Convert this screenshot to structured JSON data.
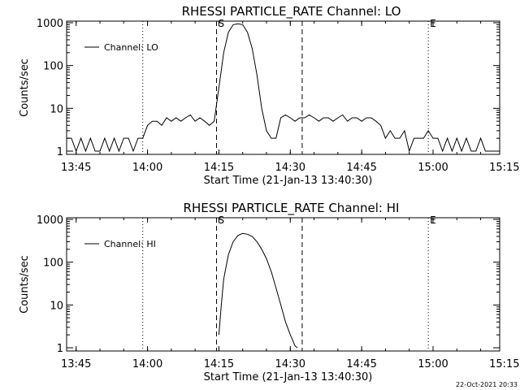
{
  "footer": {
    "timestamp": "22-Oct-2021 20:33"
  },
  "chart_data": [
    {
      "type": "line",
      "title": "RHESSI PARTICLE_RATE Channel: LO",
      "xlabel": "Start Time (21-Jan-13 13:40:30)",
      "ylabel": "Counts/sec",
      "y_scale": "log",
      "ylim": [
        1,
        1000
      ],
      "xlim_minutes": [
        13.0,
        104.0
      ],
      "x_ticks": [
        {
          "label": "13:45",
          "minutes": 15
        },
        {
          "label": "14:00",
          "minutes": 30
        },
        {
          "label": "14:15",
          "minutes": 45
        },
        {
          "label": "14:30",
          "minutes": 60
        },
        {
          "label": "14:45",
          "minutes": 75
        },
        {
          "label": "15:00",
          "minutes": 90
        },
        {
          "label": "15:15",
          "minutes": 105
        }
      ],
      "y_ticks": [
        {
          "label": "1",
          "value": 1
        },
        {
          "label": "10",
          "value": 10
        },
        {
          "label": "100",
          "value": 100
        },
        {
          "label": "1000",
          "value": 1000
        }
      ],
      "legend": {
        "label": "Channel: LO",
        "position": "top-left"
      },
      "markers": {
        "start": "S",
        "end": "E"
      },
      "dashed_lines_minutes": [
        44.5,
        62.5
      ],
      "dotted_lines_minutes": [
        29.0,
        89.0,
        105.0
      ],
      "start_marker_minutes": 44.5,
      "end_marker_minutes": 89.0,
      "series": [
        {
          "name": "Channel: LO",
          "x": [
            13.0,
            14.0,
            15.0,
            16.0,
            17.0,
            18.0,
            19.0,
            20.0,
            21.0,
            22.0,
            23.0,
            24.0,
            25.0,
            26.0,
            27.0,
            28.0,
            29.0,
            30.0,
            31.0,
            32.0,
            33.0,
            34.0,
            35.0,
            36.0,
            37.0,
            38.0,
            39.0,
            40.0,
            41.0,
            42.0,
            43.0,
            44.0,
            45.0,
            46.0,
            47.0,
            48.0,
            49.0,
            50.0,
            51.0,
            52.0,
            53.0,
            54.0,
            55.0,
            56.0,
            57.0,
            58.0,
            59.0,
            60.0,
            61.0,
            62.0,
            63.0,
            64.0,
            65.0,
            66.0,
            67.0,
            68.0,
            69.0,
            70.0,
            71.0,
            72.0,
            73.0,
            74.0,
            75.0,
            76.0,
            77.0,
            78.0,
            79.0,
            80.0,
            81.0,
            82.0,
            83.0,
            84.0,
            85.0,
            86.0,
            87.0,
            88.0,
            89.0,
            90.0,
            91.0,
            92.0,
            93.0,
            94.0,
            95.0,
            96.0,
            97.0,
            98.0,
            99.0,
            100.0,
            101.0,
            102.0,
            103.0,
            104.0
          ],
          "y": [
            2,
            2,
            1,
            2,
            1,
            2,
            1,
            1,
            2,
            1,
            2,
            1,
            2,
            2,
            1,
            2,
            2,
            4,
            5,
            5,
            4,
            6,
            5,
            6,
            5,
            6,
            7,
            5,
            6,
            5,
            4,
            5,
            30,
            200,
            600,
            900,
            950,
            900,
            600,
            250,
            60,
            10,
            3,
            2,
            2,
            6,
            7,
            6,
            5,
            6,
            6,
            7,
            6,
            5,
            6,
            6,
            5,
            6,
            7,
            5,
            6,
            6,
            5,
            6,
            6,
            5,
            4,
            2,
            3,
            2,
            2,
            3,
            1,
            2,
            2,
            2,
            3,
            2,
            2,
            1,
            2,
            1,
            2,
            1,
            2,
            1,
            1,
            2,
            1,
            1,
            1,
            1
          ]
        }
      ]
    },
    {
      "type": "line",
      "title": "RHESSI PARTICLE_RATE Channel: HI",
      "xlabel": "Start Time (21-Jan-13 13:40:30)",
      "ylabel": "Counts/sec",
      "y_scale": "log",
      "ylim": [
        1,
        1000
      ],
      "xlim_minutes": [
        13.0,
        104.0
      ],
      "x_ticks": [
        {
          "label": "13:45",
          "minutes": 15
        },
        {
          "label": "14:00",
          "minutes": 30
        },
        {
          "label": "14:15",
          "minutes": 45
        },
        {
          "label": "14:30",
          "minutes": 60
        },
        {
          "label": "14:45",
          "minutes": 75
        },
        {
          "label": "15:00",
          "minutes": 90
        },
        {
          "label": "15:15",
          "minutes": 105
        }
      ],
      "y_ticks": [
        {
          "label": "1",
          "value": 1
        },
        {
          "label": "10",
          "value": 10
        },
        {
          "label": "100",
          "value": 100
        },
        {
          "label": "1000",
          "value": 1000
        }
      ],
      "legend": {
        "label": "Channel: HI",
        "position": "top-left"
      },
      "markers": {
        "start": "S",
        "end": "E"
      },
      "dashed_lines_minutes": [
        44.5,
        62.5
      ],
      "dotted_lines_minutes": [
        29.0,
        89.0,
        105.0
      ],
      "start_marker_minutes": 44.5,
      "end_marker_minutes": 89.0,
      "series": [
        {
          "name": "Channel: HI",
          "x": [
            45.0,
            45.5,
            46.0,
            47.0,
            48.0,
            49.0,
            50.0,
            51.0,
            52.0,
            53.0,
            54.0,
            55.0,
            56.0,
            57.0,
            58.0,
            59.0,
            60.0,
            60.5,
            61.0,
            61.5
          ],
          "y": [
            2,
            10,
            40,
            150,
            300,
            420,
            470,
            450,
            400,
            300,
            200,
            120,
            60,
            25,
            10,
            4,
            2,
            1.5,
            1.1,
            1
          ]
        }
      ]
    }
  ]
}
